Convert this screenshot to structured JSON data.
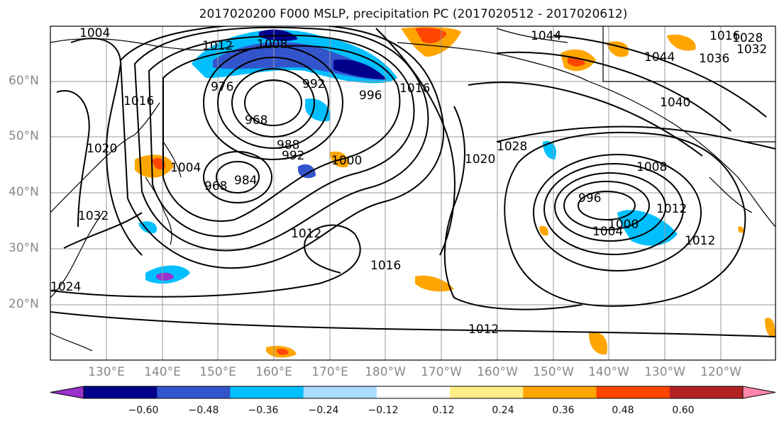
{
  "title": "2017020200 F000 MSLP, precipitation PC (2017020512 - 2017020612)",
  "lat_labels": [
    "60°N",
    "50°N",
    "40°N",
    "30°N",
    "20°N"
  ],
  "lon_labels": [
    "130°E",
    "140°E",
    "150°E",
    "160°E",
    "170°E",
    "180°W",
    "170°W",
    "160°W",
    "150°W",
    "140°W",
    "130°W",
    "120°W"
  ],
  "colorbar": {
    "colors": [
      "#9933cc",
      "#00008b",
      "#3355cc",
      "#00bfff",
      "#aaddff",
      "#ffffff",
      "#ffee88",
      "#ffa500",
      "#ff4500",
      "#b22222",
      "#ff88aa"
    ],
    "tick_labels": [
      "−0.60",
      "−0.48",
      "−0.36",
      "−0.24",
      "−0.12",
      "0.12",
      "0.24",
      "0.36",
      "0.48",
      "0.60"
    ]
  },
  "contour_labels": [
    "1004",
    "1012",
    "1008",
    "1016",
    "1044",
    "1028",
    "1032",
    "1036",
    "1040",
    "1044",
    "1016",
    "992",
    "968",
    "976",
    "996",
    "1020",
    "988",
    "992",
    "1000",
    "1028",
    "1008",
    "1004",
    "984",
    "968",
    "1020",
    "1012",
    "996",
    "1000",
    "1004",
    "1012",
    "1032",
    "1016",
    "1012",
    "1024",
    "1016",
    "1012"
  ]
}
